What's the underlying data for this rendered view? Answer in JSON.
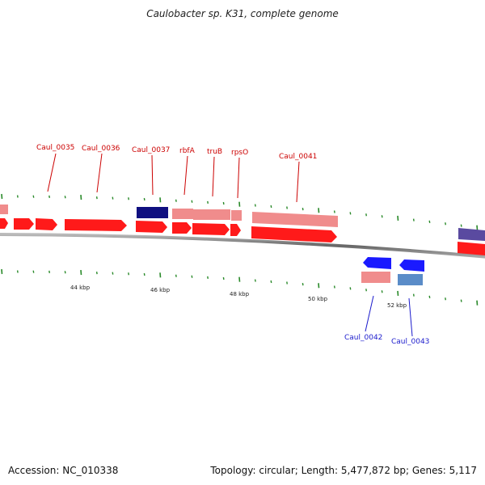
{
  "title": "Caulobacter sp. K31, complete genome",
  "accession": "Accession: NC_010338",
  "summary": "Topology: circular; Length: 5,477,872 bp; Genes: 5,117",
  "colors": {
    "backbone": "#888888",
    "forward_cds": "#ff1a1a",
    "forward_gene": "#f08c8c",
    "reverse_cds": "#1a1aff",
    "reverse_gene": "#5a8cc8",
    "other_feature": "#101080",
    "other_feature_2": "#5a4aa0",
    "tick": "#2a8a2a",
    "label_forward": "#cc0000",
    "label_reverse": "#1a1acc"
  },
  "scale_labels": [
    "44 kbp",
    "46 kbp",
    "48 kbp",
    "50 kbp",
    "52 kbp"
  ],
  "genes_top": [
    "Caul_0035",
    "Caul_0036",
    "Caul_0037",
    "rbfA",
    "truB",
    "rpsO",
    "Caul_0041"
  ],
  "genes_bottom": [
    "Caul_0042",
    "Caul_0043"
  ]
}
